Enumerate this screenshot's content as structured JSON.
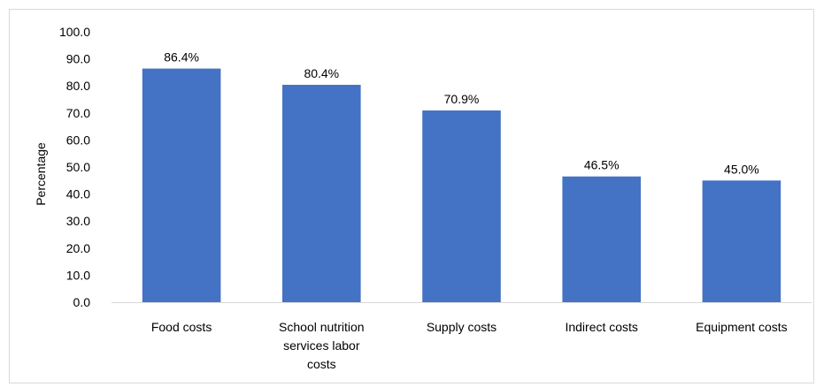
{
  "chart_data": {
    "type": "bar",
    "title": "",
    "xlabel": "",
    "ylabel": "Percentage",
    "ylim": [
      0,
      100
    ],
    "yticks": [
      "0.0",
      "10.0",
      "20.0",
      "30.0",
      "40.0",
      "50.0",
      "60.0",
      "70.0",
      "80.0",
      "90.0",
      "100.0"
    ],
    "categories": [
      [
        "Food costs"
      ],
      [
        "School nutrition",
        "services labor",
        "costs"
      ],
      [
        "Supply costs"
      ],
      [
        "Indirect costs"
      ],
      [
        "Equipment costs"
      ]
    ],
    "values": [
      86.4,
      80.4,
      70.9,
      46.5,
      45.0
    ],
    "data_labels": [
      "86.4%",
      "80.4%",
      "70.9%",
      "46.5%",
      "45.0%"
    ],
    "bar_color": "#4472c4",
    "axis_color": "#d9d9d9",
    "grid": false,
    "legend": "none"
  }
}
